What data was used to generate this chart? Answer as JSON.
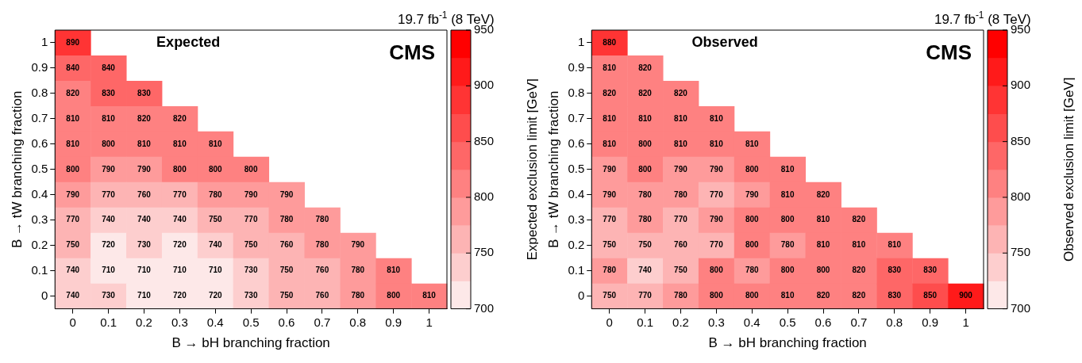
{
  "chart_data": [
    {
      "type": "heatmap",
      "title": "19.7 fb$^{-1}$ (8 TeV)",
      "xlabel": "B → bH branching fraction",
      "ylabel": "B → tW branching fraction",
      "clabel": "Expected exclusion limit [GeV]",
      "annotations": [
        "Expected",
        "CMS"
      ],
      "categories": [
        "0",
        "0.1",
        "0.2",
        "0.3",
        "0.4",
        "0.5",
        "0.6",
        "0.7",
        "0.8",
        "0.9",
        "1"
      ],
      "y_categories": [
        "1",
        "0.9",
        "0.8",
        "0.7",
        "0.6",
        "0.5",
        "0.4",
        "0.3",
        "0.2",
        "0.1",
        "0"
      ],
      "cells": [
        [
          890,
          null,
          null,
          null,
          null,
          null,
          null,
          null,
          null,
          null,
          null
        ],
        [
          840,
          840,
          null,
          null,
          null,
          null,
          null,
          null,
          null,
          null,
          null
        ],
        [
          820,
          830,
          830,
          null,
          null,
          null,
          null,
          null,
          null,
          null,
          null
        ],
        [
          810,
          810,
          820,
          820,
          null,
          null,
          null,
          null,
          null,
          null,
          null
        ],
        [
          810,
          800,
          810,
          810,
          810,
          null,
          null,
          null,
          null,
          null,
          null
        ],
        [
          800,
          790,
          790,
          800,
          800,
          800,
          null,
          null,
          null,
          null,
          null
        ],
        [
          790,
          770,
          760,
          770,
          780,
          790,
          790,
          null,
          null,
          null,
          null
        ],
        [
          770,
          740,
          740,
          740,
          750,
          770,
          780,
          780,
          null,
          null,
          null
        ],
        [
          750,
          720,
          730,
          720,
          740,
          750,
          760,
          780,
          790,
          null,
          null
        ],
        [
          740,
          710,
          710,
          710,
          710,
          730,
          750,
          760,
          780,
          810,
          null
        ],
        [
          740,
          730,
          710,
          720,
          720,
          730,
          750,
          760,
          780,
          800,
          810
        ]
      ],
      "clim": [
        700,
        950
      ],
      "cticks": [
        700,
        750,
        800,
        850,
        900,
        950
      ],
      "data_labels": true,
      "grid": false,
      "legend": false
    },
    {
      "type": "heatmap",
      "title": "19.7 fb$^{-1}$ (8 TeV)",
      "xlabel": "B → bH branching fraction",
      "ylabel": "B → tW branching fraction",
      "clabel": "Observed exclusion limit [GeV]",
      "annotations": [
        "Observed",
        "CMS"
      ],
      "categories": [
        "0",
        "0.1",
        "0.2",
        "0.3",
        "0.4",
        "0.5",
        "0.6",
        "0.7",
        "0.8",
        "0.9",
        "1"
      ],
      "y_categories": [
        "1",
        "0.9",
        "0.8",
        "0.7",
        "0.6",
        "0.5",
        "0.4",
        "0.3",
        "0.2",
        "0.1",
        "0"
      ],
      "cells": [
        [
          880,
          null,
          null,
          null,
          null,
          null,
          null,
          null,
          null,
          null,
          null
        ],
        [
          810,
          820,
          null,
          null,
          null,
          null,
          null,
          null,
          null,
          null,
          null
        ],
        [
          820,
          820,
          820,
          null,
          null,
          null,
          null,
          null,
          null,
          null,
          null
        ],
        [
          810,
          810,
          810,
          810,
          null,
          null,
          null,
          null,
          null,
          null,
          null
        ],
        [
          810,
          800,
          810,
          810,
          810,
          null,
          null,
          null,
          null,
          null,
          null
        ],
        [
          790,
          800,
          790,
          790,
          800,
          810,
          null,
          null,
          null,
          null,
          null
        ],
        [
          790,
          780,
          780,
          770,
          790,
          810,
          820,
          null,
          null,
          null,
          null
        ],
        [
          770,
          780,
          770,
          790,
          800,
          800,
          810,
          820,
          null,
          null,
          null
        ],
        [
          750,
          750,
          760,
          770,
          800,
          780,
          810,
          810,
          810,
          null,
          null
        ],
        [
          780,
          740,
          750,
          800,
          780,
          800,
          800,
          820,
          830,
          830,
          null
        ],
        [
          750,
          770,
          780,
          800,
          800,
          810,
          820,
          820,
          830,
          850,
          900
        ]
      ],
      "clim": [
        700,
        950
      ],
      "cticks": [
        700,
        750,
        800,
        850,
        900,
        950
      ],
      "data_labels": true,
      "grid": false,
      "legend": false
    }
  ]
}
